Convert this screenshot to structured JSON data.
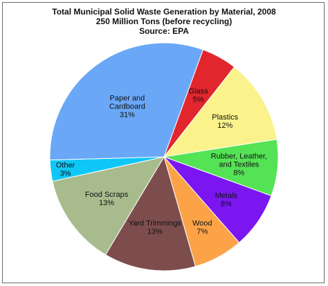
{
  "chart_data": {
    "type": "pie",
    "title": "Total Municipal Solid Waste Generation by Material, 2008",
    "subtitle": "250 Million Tons (before recycling)",
    "source": "Source: EPA",
    "slices": [
      {
        "label": "Glass",
        "value": 5,
        "value_label": "5%",
        "color": "#e1262e"
      },
      {
        "label": "Plastics",
        "value": 12,
        "value_label": "12%",
        "color": "#fbf28b"
      },
      {
        "label": "Rubber, Leather, and Textiles",
        "value": 8,
        "value_label": "8%",
        "color": "#55e356"
      },
      {
        "label": "Metals",
        "value": 8,
        "value_label": "8%",
        "color": "#7b16f0"
      },
      {
        "label": "Wood",
        "value": 7,
        "value_label": "7%",
        "color": "#fca348"
      },
      {
        "label": "Yard Trimmings",
        "value": 13,
        "value_label": "13%",
        "color": "#7d4d4d"
      },
      {
        "label": "Food Scraps",
        "value": 13,
        "value_label": "13%",
        "color": "#a8bb8d"
      },
      {
        "label": "Other",
        "value": 3,
        "value_label": "3%",
        "color": "#0fc7f7"
      },
      {
        "label": "Paper and Cardboard",
        "value": 31,
        "value_label": "31%",
        "color": "#6aa7f7"
      }
    ]
  }
}
